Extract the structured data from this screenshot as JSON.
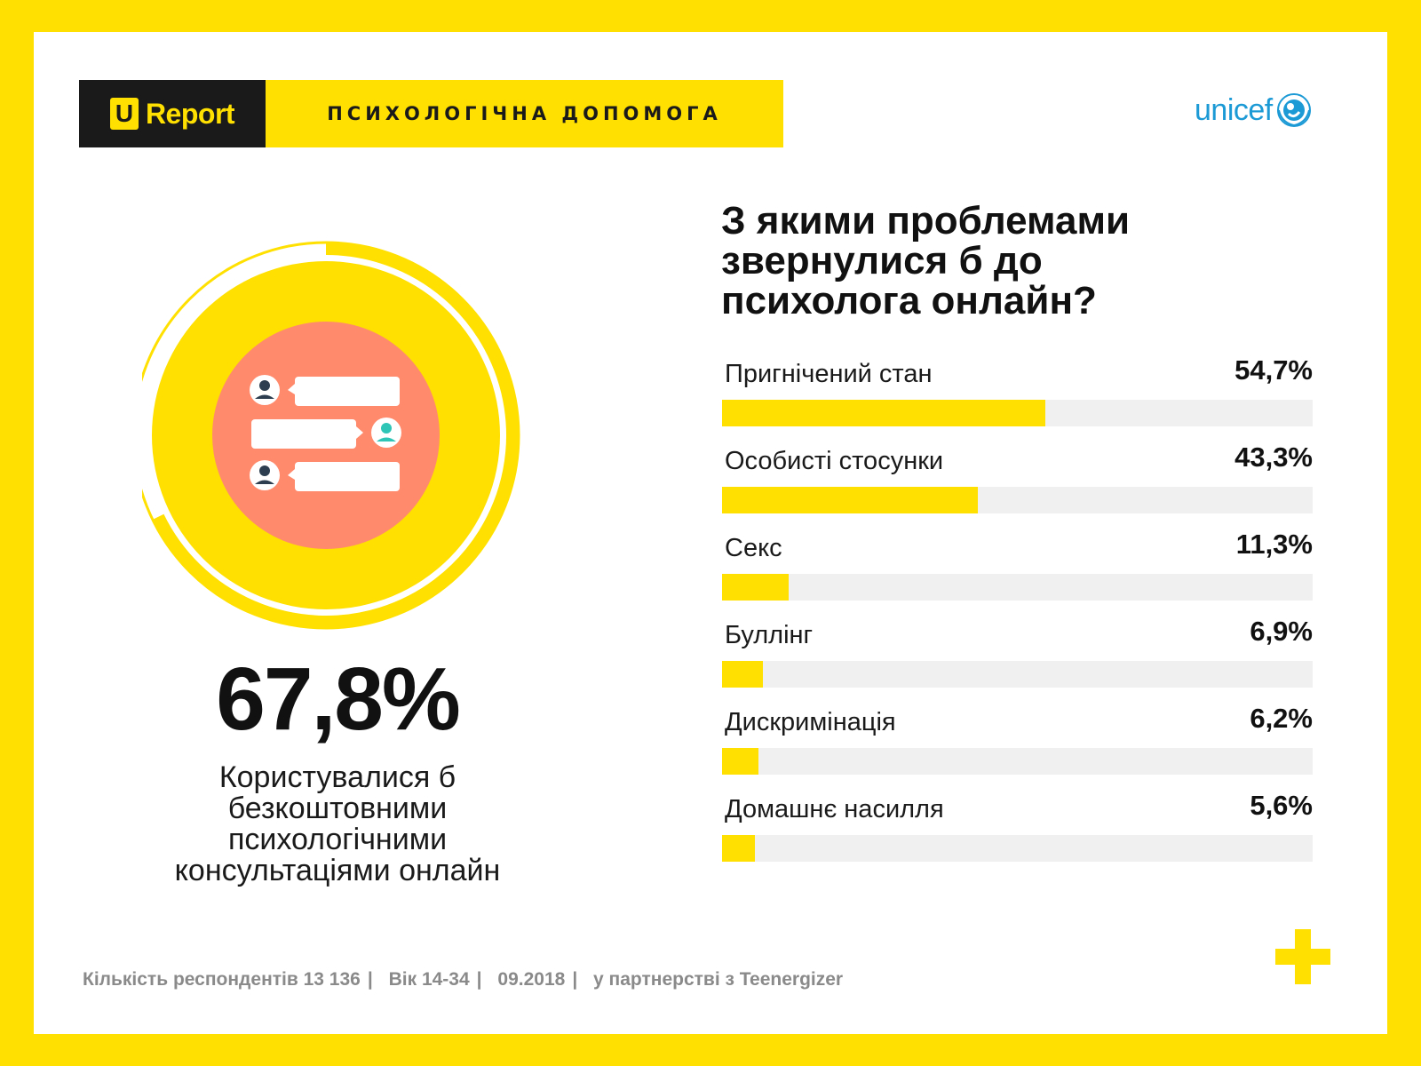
{
  "header": {
    "logo_letter": "U",
    "logo_text": "Report",
    "title": "ПСИХОЛОГІЧНА ДОПОМОГА",
    "partner_logo": "unicef"
  },
  "highlight": {
    "value": "67,8%",
    "value_fraction": 0.678,
    "caption_lines": [
      "Користувалися б",
      "безкоштовними",
      "психологічними",
      "консультаціями онлайн"
    ]
  },
  "chart_data": {
    "type": "bar",
    "orientation": "horizontal",
    "title_lines": [
      "З якими проблемами",
      "звернулися б до",
      "психолога онлайн?"
    ],
    "categories": [
      "Пригнічений стан",
      "Особисті стосунки",
      "Секс",
      "Буллінг",
      "Дискримінація",
      "Домашнє насилля"
    ],
    "values": [
      54.7,
      43.3,
      11.3,
      6.9,
      6.2,
      5.6
    ],
    "value_labels": [
      "54,7%",
      "43,3%",
      "11,3%",
      "6,9%",
      "6,2%",
      "5,6%"
    ],
    "xlim": [
      0,
      100
    ],
    "bar_color": "#ffe000",
    "track_color": "#f0f0f0"
  },
  "footer": {
    "items": [
      "Кількість респондентів  13 136",
      "Вік 14-34",
      "09.2018",
      "у партнерстві з Teenergizer"
    ],
    "separator": "|"
  },
  "colors": {
    "brand_yellow": "#ffe000",
    "dark": "#1a1a1a",
    "salmon": "#ff8a6c",
    "unicef_blue": "#1c9ad6",
    "avatar_teal": "#2ec4b6"
  },
  "icons": [
    "chat-icon",
    "person-icon",
    "unicef-emblem-icon",
    "plus-icon"
  ]
}
